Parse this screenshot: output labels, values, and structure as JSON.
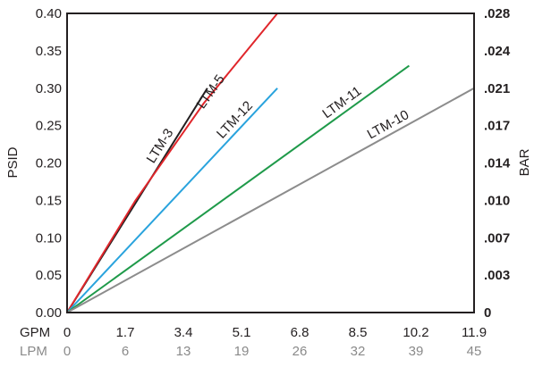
{
  "chart_data": {
    "type": "line",
    "ylabel_left": "PSID",
    "ylabel_right": "BAR",
    "x_row_labels": {
      "primary": "GPM",
      "secondary": "LPM"
    },
    "xlim": [
      0,
      11.9
    ],
    "ylim": [
      0,
      0.4
    ],
    "x_ticks_gpm": [
      "0",
      "1.7",
      "3.4",
      "5.1",
      "6.8",
      "8.5",
      "10.2",
      "11.9"
    ],
    "x_ticks_lpm": [
      "0",
      "6",
      "13",
      "19",
      "26",
      "32",
      "39",
      "45"
    ],
    "y_ticks_left": [
      "0.00",
      "0.05",
      "0.10",
      "0.15",
      "0.20",
      "0.25",
      "0.30",
      "0.35",
      "0.40"
    ],
    "y_ticks_right": [
      "0",
      ".003",
      ".007",
      ".010",
      ".014",
      ".017",
      ".021",
      ".024",
      ".028"
    ],
    "grid": false,
    "series": [
      {
        "name": "LTM-3",
        "color": "#231f20",
        "points": [
          [
            0,
            0
          ],
          [
            4.1,
            0.3
          ]
        ]
      },
      {
        "name": "LTM-5",
        "color": "#e0262b",
        "points": [
          [
            0,
            0
          ],
          [
            2.0,
            0.15
          ],
          [
            4.0,
            0.28
          ],
          [
            6.15,
            0.4
          ]
        ]
      },
      {
        "name": "LTM-12",
        "color": "#29a3dd",
        "points": [
          [
            0,
            0
          ],
          [
            6.15,
            0.3
          ]
        ]
      },
      {
        "name": "LTM-11",
        "color": "#1f9a4a",
        "points": [
          [
            0,
            0
          ],
          [
            10.0,
            0.33
          ]
        ]
      },
      {
        "name": "LTM-10",
        "color": "#8c8c8c",
        "points": [
          [
            0,
            0
          ],
          [
            11.9,
            0.3
          ]
        ]
      }
    ]
  }
}
